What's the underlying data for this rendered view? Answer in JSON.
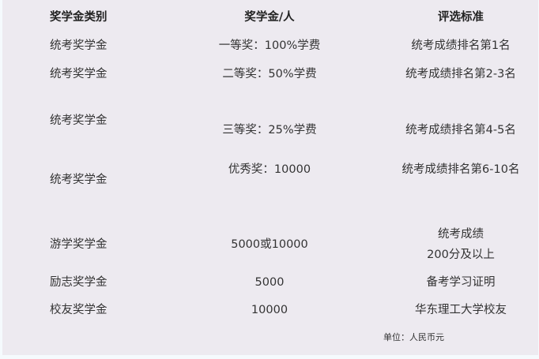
{
  "headers": [
    "奖学金类别",
    "奖学金/人",
    "评选标准"
  ],
  "rows": [
    {
      "category": "统考奖学金",
      "amount": "一等奖：100%学费",
      "criteria": "统考成绩排名第1名"
    },
    {
      "category": "统考奖学金",
      "amount": "二等奖：50%学费",
      "criteria": "统考成绩排名第2-3名"
    },
    {
      "category": "统考奖学金",
      "amount": "三等奖：25%学费",
      "criteria": "统考成绩排名第4-5名"
    },
    {
      "category": "统考奖学金",
      "amount": "优秀奖：10000",
      "criteria": "统考成绩排名第6-10名"
    },
    {
      "category": "游学奖学金",
      "amount": "5000或10000",
      "criteria": "统考成绩",
      "criteria_line2": "200分及以上"
    },
    {
      "category": "励志奖学金",
      "amount": "5000",
      "criteria": "备考学习证明"
    },
    {
      "category": "校友奖学金",
      "amount": "10000",
      "criteria": "华东理工大学校友"
    }
  ],
  "unit_note": "单位：人民币元"
}
